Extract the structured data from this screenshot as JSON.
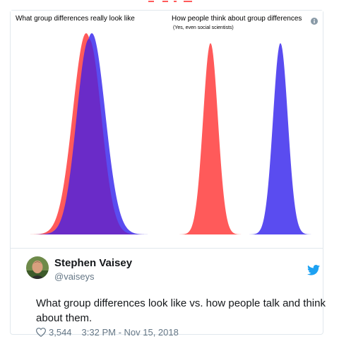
{
  "colors": {
    "red": "#ff5a5a",
    "blue": "#5a4cf0",
    "overlap": "#6a2bc8",
    "twitter_blue": "#1da1f2",
    "muted": "#657786"
  },
  "media": {
    "left_title": "What group differences really look like",
    "right_title": "How people think about group differences",
    "right_subtitle": "(Yes, even social scientists)",
    "info_icon": "info-icon"
  },
  "tweet": {
    "display_name": "Stephen Vaisey",
    "handle": "@vaiseys",
    "text": "What group differences look like vs. how people talk and think about them.",
    "likes": "3,544",
    "timestamp": "3:32 PM - Nov 15, 2018",
    "bird_icon": "twitter-bird-icon",
    "heart_icon": "heart-icon"
  }
}
